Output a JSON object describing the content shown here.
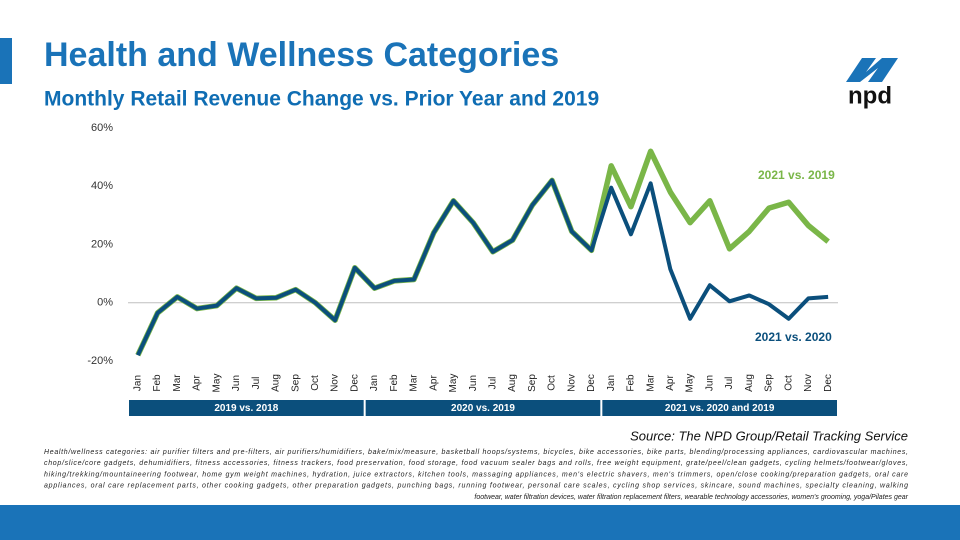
{
  "title": "Health and Wellness Categories",
  "subtitle": "Monthly Retail Revenue Change vs. Prior Year and 2019",
  "logo": "npd",
  "source": "Source: The NPD Group/Retail Tracking Service",
  "footnote": [
    "Health/wellness categories: air purifier filters and pre-filters, air purifiers/humidifiers, bake/mix/measure, basketball hoops/systems, bicycles, bike accessories, bike parts, blending/processing appliances, cardiovascular machines,",
    "chop/slice/core gadgets, dehumidifiers, fitness accessories, fitness trackers, food preservation, food storage, food vacuum sealer bags and rolls, free weight equipment, grate/peel/clean gadgets, cycling helmets/footwear/gloves,",
    "hiking/trekking/mountaineering footwear, home gym weight machines, hydration, juice extractors, kitchen tools, massaging appliances, men's electric shavers, men's trimmers, open/close cooking/preparation gadgets, oral care",
    "appliances, oral care replacement parts, other cooking gadgets, other preparation gadgets, punching bags, running footwear, personal care scales, cycling shop services, skincare, sound machines, specialty cleaning, walking",
    "footwear, water filtration devices, water filtration replacement filters, wearable technology accessories, women's grooming, yoga/Pilates gear"
  ],
  "chart_data": {
    "type": "line",
    "categories": [
      "Jan",
      "Feb",
      "Mar",
      "Apr",
      "May",
      "Jun",
      "Jul",
      "Aug",
      "Sep",
      "Oct",
      "Nov",
      "Dec",
      "Jan",
      "Feb",
      "Mar",
      "Apr",
      "May",
      "Jun",
      "Jul",
      "Aug",
      "Sep",
      "Oct",
      "Nov",
      "Dec",
      "Jan",
      "Feb",
      "Mar",
      "Apr",
      "May",
      "Jun",
      "Jul",
      "Aug",
      "Sep",
      "Oct",
      "Nov",
      "Dec"
    ],
    "groups": [
      "2019 vs. 2018",
      "2020 vs. 2019",
      "2021 vs. 2020 and 2019"
    ],
    "series": [
      {
        "name": "2021 vs. 2019",
        "color": "#7ab648",
        "values": [
          -18,
          -3.5,
          2,
          -2,
          -1,
          5,
          1.5,
          1.7,
          4.5,
          0,
          -6,
          12,
          5,
          7.5,
          8,
          24,
          35,
          27.5,
          17.5,
          21.5,
          33.5,
          42,
          24.5,
          18,
          47,
          33,
          52,
          38,
          27.5,
          35,
          18.5,
          24.5,
          32.5,
          34.5,
          26.5,
          21
        ]
      },
      {
        "name": "2021 vs. 2020",
        "color": "#0b4f7c",
        "values": [
          -18,
          -3.5,
          2,
          -2,
          -1,
          5,
          1.5,
          1.7,
          4.5,
          0,
          -6,
          12,
          5,
          7.5,
          8,
          24,
          35,
          27.5,
          17.5,
          21.5,
          33.5,
          42,
          24.5,
          18,
          39.5,
          23.5,
          41,
          11.5,
          -5.5,
          6,
          0.5,
          2.5,
          -0.5,
          -5.5,
          1.5,
          2
        ]
      }
    ],
    "ylim": [
      -20,
      60
    ],
    "yticks": [
      {
        "value": -20,
        "label": "-20%"
      },
      {
        "value": 0,
        "label": "0%"
      },
      {
        "value": 20,
        "label": "20%"
      },
      {
        "value": 40,
        "label": "40%"
      },
      {
        "value": 60,
        "label": "60%"
      }
    ],
    "grid": false
  }
}
